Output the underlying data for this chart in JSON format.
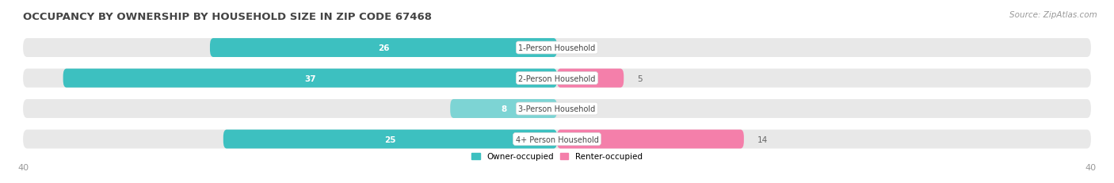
{
  "title": "OCCUPANCY BY OWNERSHIP BY HOUSEHOLD SIZE IN ZIP CODE 67468",
  "source": "Source: ZipAtlas.com",
  "categories": [
    "1-Person Household",
    "2-Person Household",
    "3-Person Household",
    "4+ Person Household"
  ],
  "owner_values": [
    26,
    37,
    8,
    25
  ],
  "renter_values": [
    0,
    5,
    0,
    14
  ],
  "owner_color": "#3dc0c0",
  "owner_color_light": "#7dd4d4",
  "renter_color": "#f47faa",
  "bar_bg_color": "#e8e8e8",
  "axis_limit": 40,
  "legend_owner": "Owner-occupied",
  "legend_renter": "Renter-occupied",
  "label_fontsize": 7.5,
  "title_fontsize": 9.5,
  "source_fontsize": 7.5,
  "tick_fontsize": 8,
  "bar_height": 0.62,
  "fig_width": 14.06,
  "fig_height": 2.32
}
